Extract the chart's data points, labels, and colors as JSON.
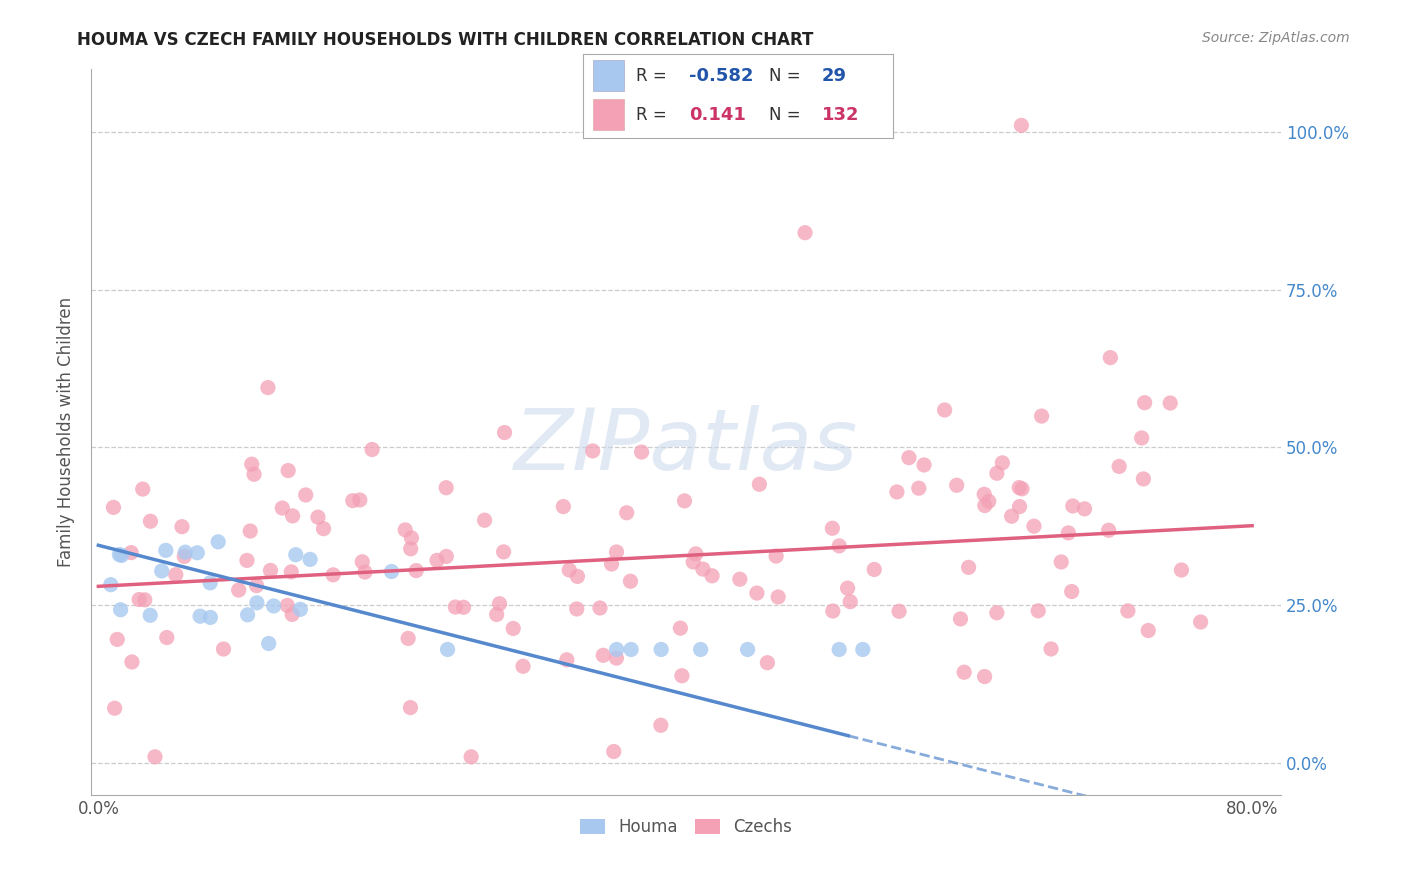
{
  "title": "HOUMA VS CZECH FAMILY HOUSEHOLDS WITH CHILDREN CORRELATION CHART",
  "source": "Source: ZipAtlas.com",
  "ylabel": "Family Households with Children",
  "xlim": [
    0.0,
    0.8
  ],
  "ylim": [
    -0.05,
    1.1
  ],
  "yticks": [
    0.0,
    0.25,
    0.5,
    0.75,
    1.0
  ],
  "ytick_labels": [
    "0.0%",
    "25.0%",
    "50.0%",
    "75.0%",
    "100.0%"
  ],
  "legend_R_houma": "-0.582",
  "legend_N_houma": "29",
  "legend_R_czech": "0.141",
  "legend_N_czech": "132",
  "color_houma": "#a8c8f0",
  "color_czech": "#f4a0b5",
  "color_houma_line": "#5588cc",
  "color_czech_line": "#e06080",
  "houma_slope": -0.58,
  "houma_intercept": 0.345,
  "czech_slope": 0.12,
  "czech_intercept": 0.28,
  "bg_color": "#ffffff",
  "grid_color": "#cccccc",
  "title_color": "#222222",
  "source_color": "#888888",
  "right_axis_color": "#4488cc"
}
